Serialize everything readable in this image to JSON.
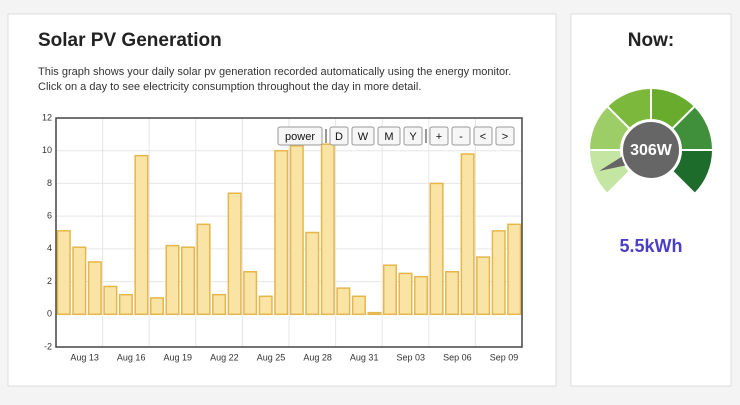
{
  "header": {
    "title": "Solar PV Generation",
    "description": [
      "This graph shows your daily solar pv generation recorded automatically using the energy monitor.",
      "Click on a day to see electricity consumption throughout the day in more detail."
    ]
  },
  "controls": [
    "power",
    "D",
    "W",
    "M",
    "Y",
    "+",
    "-",
    "<",
    ">"
  ],
  "chart_data": {
    "type": "bar",
    "x": [
      0,
      1,
      2,
      3,
      4,
      5,
      6,
      7,
      8,
      9,
      10,
      11,
      12,
      13,
      14,
      15,
      16,
      17,
      18,
      19,
      20,
      21,
      22,
      23,
      24,
      25,
      26,
      27,
      28,
      29
    ],
    "values": [
      5.1,
      4.1,
      3.2,
      1.7,
      1.2,
      9.7,
      1.0,
      4.2,
      4.1,
      5.5,
      1.2,
      7.4,
      2.6,
      1.1,
      10.0,
      10.3,
      5.0,
      10.4,
      1.6,
      1.1,
      0.1,
      3.0,
      2.5,
      2.3,
      8.0,
      2.6,
      9.8,
      3.5,
      5.1,
      5.5
    ],
    "color": "#f9e4a6",
    "edge_color": "#e5b64a",
    "xlim": [
      0,
      30
    ],
    "xticks": [
      {
        "value": 3,
        "label": "Aug 13"
      },
      {
        "value": 6,
        "label": "Aug 16"
      },
      {
        "value": 9,
        "label": "Aug 19"
      },
      {
        "value": 12,
        "label": "Aug 22"
      },
      {
        "value": 15,
        "label": "Aug 25"
      },
      {
        "value": 18,
        "label": "Aug 28"
      },
      {
        "value": 21,
        "label": "Aug 31"
      },
      {
        "value": 24,
        "label": "Sep 03"
      },
      {
        "value": 27,
        "label": "Sep 06"
      },
      {
        "value": 30,
        "label": "Sep 09"
      }
    ],
    "ylim": [
      -2,
      12
    ],
    "yticks": [
      -2,
      0,
      2,
      4,
      6,
      8,
      10,
      12
    ],
    "grid": true
  },
  "now": {
    "title": "Now:",
    "power": "306W",
    "energy": "5.5kWh"
  }
}
